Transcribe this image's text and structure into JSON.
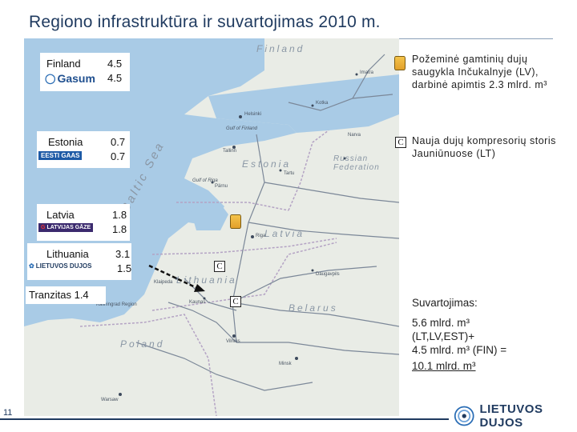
{
  "title": "Regiono infrastruktūra ir suvartojimas 2010 m.",
  "page_number": "11",
  "map": {
    "labels": {
      "finland": "Finland",
      "baltic_sea": "Baltic Sea",
      "estonia": "Estonia",
      "latvia": "Latvia",
      "lithuania": "Lithuania",
      "russian_federation": "Russian Federation",
      "belarus": "Belarus",
      "poland": "Poland",
      "gulf_of_finland": "Gulf of Finland",
      "gulf_of_riga": "Gulf of Riga",
      "kaliningrad": "Kaliningrad Region"
    },
    "cities": {
      "helsinki": "Helsinki",
      "tallinn": "Tallinn",
      "riga": "Riga",
      "vilnius": "Vilnius",
      "minsk": "Minsk",
      "warsaw": "Warsaw",
      "kotka": "Kotka",
      "narva": "Narva",
      "tartu": "Tartu",
      "parnu": "Pärnu",
      "daugavpils": "Daugavpils",
      "kaunas": "Kaunas",
      "klaipeda": "Klaipeda",
      "imatra": "Imatra"
    }
  },
  "consumption": {
    "finland": {
      "label": "Finland",
      "values": [
        "4.5",
        "4.5"
      ],
      "logo": "Gasum"
    },
    "estonia": {
      "label": "Estonia",
      "values": [
        "0.7",
        "0.7"
      ],
      "logo": "EESTI GAAS"
    },
    "latvia": {
      "label": "Latvia",
      "values": [
        "1.8",
        "1.8"
      ],
      "logo": "LATVIJAS GĀZE"
    },
    "lithuania": {
      "label": "Lithuania",
      "values": [
        "3.1",
        "1.5"
      ],
      "logo": "LIETUVOS DUJOS"
    },
    "transit": {
      "label": "Tranzitas 1.4"
    }
  },
  "legend": {
    "storage": "Požeminė gamtinių dujų saugykla Inčukalnyje (LV), darbinė apimtis 2.3 mlrd. m³",
    "compressor_symbol": "C",
    "compressor": "Nauja dujų kompresorių storis Jauniūnuose (LT)"
  },
  "summary": {
    "heading": "Suvartojimas:",
    "line1": "5.6 mlrd. m³",
    "line2": "(LT,LV,EST)+",
    "line3": "4.5 mlrd. m³ (FIN) =",
    "line4": "10.1 mlrd. m³"
  },
  "footer": {
    "company": "LIETUVOS DUJOS"
  },
  "colors": {
    "title": "#1f3a5f",
    "sea": "#a9cbe6",
    "land": "#e9ece6",
    "pipeline": "#7b8798",
    "storage": "#f0b73a"
  }
}
